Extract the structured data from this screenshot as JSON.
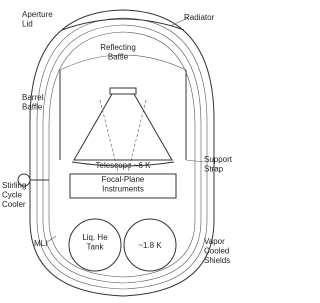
{
  "labels": [
    {
      "lines": [
        "Aperture",
        "Lid"
      ]
    },
    {
      "lines": [
        "Radiator"
      ]
    },
    {
      "lines": [
        "Reflecting",
        "Baffle"
      ]
    },
    {
      "lines": [
        "Barrel",
        "Baffle"
      ]
    },
    {
      "lines": [
        "Support",
        "Strap"
      ]
    },
    {
      "lines": [
        "Telescope ~6 K"
      ]
    },
    {
      "lines": [
        "Focal-Plane",
        "Instruments"
      ]
    },
    {
      "lines": [
        "Stirling",
        "Cycle",
        "Cooler"
      ]
    },
    {
      "lines": [
        "MLI"
      ]
    },
    {
      "lines": [
        "Liq. He",
        "Tank"
      ]
    },
    {
      "lines": [
        "~1.8 K"
      ]
    },
    {
      "lines": [
        "Vapor",
        "Cooled",
        "Shields"
      ]
    }
  ]
}
